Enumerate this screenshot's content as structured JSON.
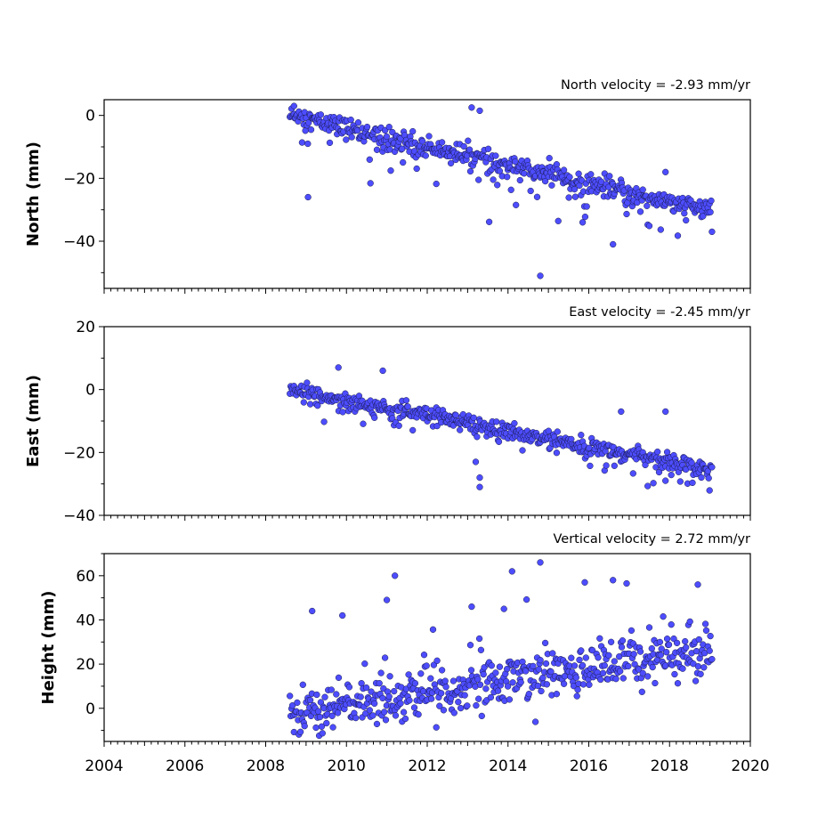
{
  "chart_data": {
    "type": "scatter",
    "marker_color": "#4d4dff",
    "marker_edge_color": "#1a1a4a",
    "x_range": [
      2004,
      2020
    ],
    "x_ticks": [
      2004,
      2006,
      2008,
      2010,
      2012,
      2014,
      2016,
      2018,
      2020
    ],
    "x_tick_labels": [
      "2004",
      "2006",
      "2008",
      "2010",
      "2012",
      "2014",
      "2016",
      "2018",
      "2020"
    ],
    "data_span": [
      2008.6,
      2019.05
    ],
    "panels": [
      {
        "name": "north",
        "title": "North velocity = -2.93 mm/yr",
        "ylabel": "North (mm)",
        "ylim": [
          -55,
          5
        ],
        "yticks": [
          0,
          -20,
          -40
        ],
        "ytick_labels": [
          "0",
          "−20",
          "−40"
        ],
        "start_value": 0,
        "velocity": -2.93,
        "scatter_mm": 1.8,
        "outliers": [
          [
            2008.7,
            3
          ],
          [
            2009.05,
            -26
          ],
          [
            2013.1,
            2.5
          ],
          [
            2013.3,
            1.5
          ],
          [
            2014.8,
            -51
          ],
          [
            2016.6,
            -41
          ],
          [
            2017.9,
            -18
          ]
        ]
      },
      {
        "name": "east",
        "title": "East velocity = -2.45 mm/yr",
        "ylabel": "East (mm)",
        "ylim": [
          -40,
          20
        ],
        "yticks": [
          20,
          0,
          -20,
          -40
        ],
        "ytick_labels": [
          "20",
          "0",
          "−20",
          "−40"
        ],
        "start_value": 0,
        "velocity": -2.45,
        "scatter_mm": 1.5,
        "outliers": [
          [
            2009.8,
            7
          ],
          [
            2010.9,
            6
          ],
          [
            2013.3,
            -28
          ],
          [
            2013.3,
            -31
          ],
          [
            2013.2,
            -23
          ],
          [
            2017.9,
            -7
          ],
          [
            2017.9,
            -29
          ],
          [
            2016.8,
            -7
          ]
        ]
      },
      {
        "name": "height",
        "title": "Vertical velocity = 2.72 mm/yr",
        "ylabel": "Height (mm)",
        "ylim": [
          -15,
          70
        ],
        "yticks": [
          60,
          40,
          20,
          0
        ],
        "ytick_labels": [
          "60",
          "40",
          "20",
          "0"
        ],
        "start_value": -2,
        "velocity": 2.72,
        "scatter_mm": 5.5,
        "outliers": [
          [
            2009.15,
            44
          ],
          [
            2009.9,
            42
          ],
          [
            2011.2,
            60
          ],
          [
            2014.1,
            62
          ],
          [
            2014.8,
            66
          ],
          [
            2015.9,
            57
          ],
          [
            2016.6,
            58
          ],
          [
            2018.7,
            56
          ],
          [
            2013.1,
            46
          ],
          [
            2011.0,
            49
          ],
          [
            2013.9,
            45
          ]
        ]
      }
    ]
  }
}
